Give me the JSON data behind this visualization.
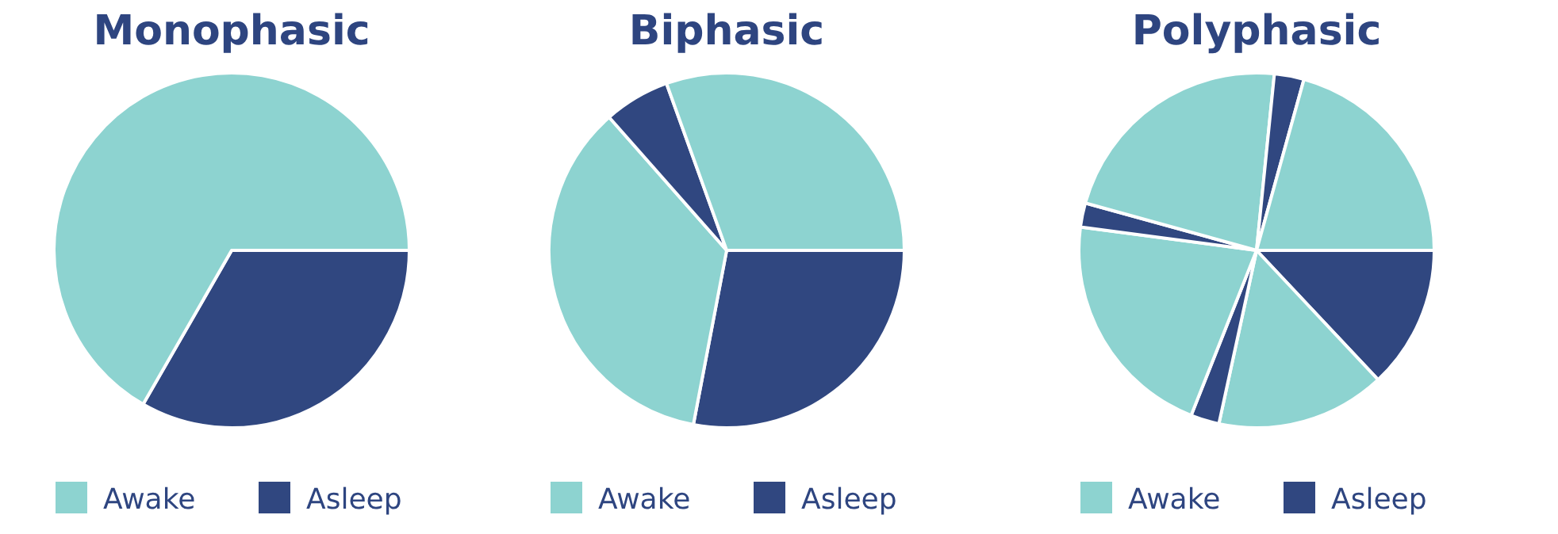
{
  "chart_data": [
    {
      "type": "pie",
      "title": "Monophasic",
      "categories": [
        "Asleep",
        "Awake"
      ],
      "values": [
        33.3,
        66.7
      ],
      "colors": [
        "#304780",
        "#8dd3d0"
      ],
      "legend": "bottom"
    },
    {
      "type": "pie",
      "title": "Biphasic",
      "categories": [
        "Asleep",
        "Awake",
        null,
        null
      ],
      "values": [
        28,
        35.5,
        6,
        30.5
      ],
      "colors": [
        "#304780",
        "#8dd3d0",
        "#304780",
        "#8dd3d0"
      ],
      "legend": "bottom"
    },
    {
      "type": "pie",
      "title": "Polyphasic",
      "categories": [
        "Asleep",
        "Awake",
        null,
        null,
        null,
        null,
        null,
        null
      ],
      "values": [
        13,
        15.4,
        2.6,
        21.1,
        2.2,
        22.3,
        2.7,
        20.7
      ],
      "colors": [
        "#304780",
        "#8dd3d0",
        "#304780",
        "#8dd3d0",
        "#304780",
        "#8dd3d0",
        "#304780",
        "#8dd3d0"
      ],
      "legend": "bottom"
    }
  ]
}
